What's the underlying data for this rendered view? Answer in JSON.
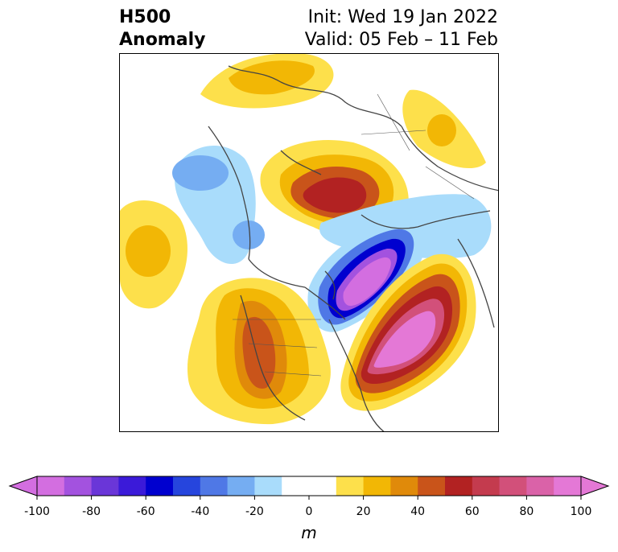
{
  "title": {
    "line1_left": "H500",
    "line2_left": "Anomaly",
    "line1_right": "Init: Wed 19 Jan 2022",
    "line2_right": "Valid: 05 Feb – 11 Feb"
  },
  "colorbar": {
    "units": "m",
    "ticks": [
      "-100",
      "-80",
      "-60",
      "-40",
      "-20",
      "0",
      "20",
      "40",
      "60",
      "80",
      "100"
    ],
    "colors": [
      "#d36ee0",
      "#a352df",
      "#6a36d8",
      "#3b1ad9",
      "#0000cf",
      "#2645dd",
      "#4f78e6",
      "#75adf2",
      "#a9dcfb",
      "#ffffff",
      "#ffffff",
      "#fde04b",
      "#f2b705",
      "#e08a0a",
      "#c9541a",
      "#b22222",
      "#c43b4e",
      "#d2507a",
      "#da62a8",
      "#e478d6"
    ],
    "min_arrow_color": "#d36ee0",
    "max_arrow_color": "#e478d6"
  },
  "map": {
    "projection": "north polar stereographic",
    "feature_colors": {
      "positive_weak": "#fde04b",
      "positive_mod": "#f2b705",
      "positive_strong": "#c9541a",
      "positive_max": "#b22222",
      "negative_weak": "#a9dcfb",
      "negative_mod": "#75adf2",
      "negative_strong": "#0000cf",
      "negative_max": "#a352df",
      "coastline": "#444444"
    }
  }
}
